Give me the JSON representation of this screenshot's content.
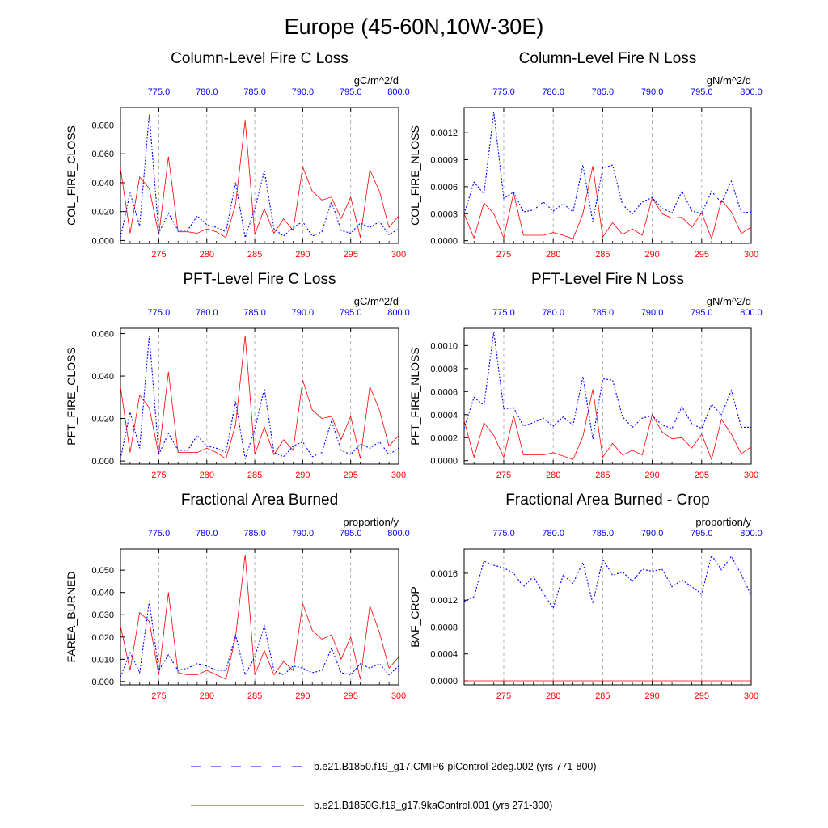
{
  "figure_title": "Europe (45-60N,10W-30E)",
  "legend": [
    {
      "label": "b.e21.B1850.f19_g17.CMIP6-piControl-2deg.002 (yrs 771-800)",
      "color": "#0000ff",
      "style": "dashed"
    },
    {
      "label": "b.e21.B1850G.f19_g17.9kaControl.001 (yrs 271-300)",
      "color": "#ff0000",
      "style": "solid"
    }
  ],
  "chart_data": [
    {
      "type": "line",
      "title": "Column-Level Fire C Loss",
      "units": "gC/m^2/d",
      "ylabel": "COL_FIRE_CLOSS",
      "xlim_bottom": [
        271,
        300
      ],
      "xticks_bottom": [
        275,
        280,
        285,
        290,
        295,
        300
      ],
      "xticks_top": [
        "775.0",
        "780.0",
        "785.0",
        "790.0",
        "795.0",
        "800.0"
      ],
      "ylim": [
        -0.002,
        0.092
      ],
      "yticks": [
        "0.000",
        "0.020",
        "0.040",
        "0.060",
        "0.080"
      ],
      "ytick_values": [
        0,
        0.02,
        0.04,
        0.06,
        0.08
      ],
      "x_bottom": [
        271,
        272,
        273,
        274,
        275,
        276,
        277,
        278,
        279,
        280,
        281,
        282,
        283,
        284,
        285,
        286,
        287,
        288,
        289,
        290,
        291,
        292,
        293,
        294,
        295,
        296,
        297,
        298,
        299,
        300
      ],
      "series": [
        {
          "name": "b.e21.B1850.f19_g17.CMIP6-piControl-2deg.002 (yrs 771-800)",
          "color": "#0000ff",
          "dash": true,
          "values": [
            0.002,
            0.033,
            0.01,
            0.087,
            0.005,
            0.019,
            0.007,
            0.007,
            0.017,
            0.011,
            0.009,
            0.006,
            0.04,
            0.002,
            0.022,
            0.048,
            0.008,
            0.003,
            0.009,
            0.013,
            0.003,
            0.006,
            0.027,
            0.007,
            0.005,
            0.012,
            0.009,
            0.013,
            0.004,
            0.008
          ]
        },
        {
          "name": "b.e21.B1850G.f19_g17.9kaControl.001 (yrs 271-300)",
          "color": "#ff0000",
          "dash": false,
          "values": [
            0.05,
            0.005,
            0.044,
            0.036,
            0.004,
            0.058,
            0.006,
            0.006,
            0.005,
            0.008,
            0.006,
            0.002,
            0.025,
            0.083,
            0.004,
            0.022,
            0.005,
            0.015,
            0.007,
            0.051,
            0.034,
            0.028,
            0.03,
            0.015,
            0.03,
            0.002,
            0.049,
            0.034,
            0.009,
            0.017
          ]
        }
      ]
    },
    {
      "type": "line",
      "title": "Column-Level Fire N Loss",
      "units": "gN/m^2/d",
      "ylabel": "COL_FIRE_NLOSS",
      "xlim_bottom": [
        271,
        300
      ],
      "xticks_bottom": [
        275,
        280,
        285,
        290,
        295,
        300
      ],
      "xticks_top": [
        "775.0",
        "780.0",
        "785.0",
        "790.0",
        "795.0",
        "800.0"
      ],
      "ylim": [
        -3e-05,
        0.00148
      ],
      "yticks": [
        "0.0000",
        "0.0003",
        "0.0006",
        "0.0009",
        "0.0012"
      ],
      "ytick_values": [
        0,
        0.0003,
        0.0006,
        0.0009,
        0.0012
      ],
      "x_bottom": [
        271,
        272,
        273,
        274,
        275,
        276,
        277,
        278,
        279,
        280,
        281,
        282,
        283,
        284,
        285,
        286,
        287,
        288,
        289,
        290,
        291,
        292,
        293,
        294,
        295,
        296,
        297,
        298,
        299,
        300
      ],
      "series": [
        {
          "name": "b.e21.B1850.f19_g17.CMIP6-piControl-2deg.002 (yrs 771-800)",
          "color": "#0000ff",
          "dash": true,
          "values": [
            0.0003,
            0.00065,
            0.00052,
            0.00143,
            0.00047,
            0.00054,
            0.00032,
            0.00034,
            0.00043,
            0.00033,
            0.00041,
            0.00032,
            0.00084,
            0.00021,
            0.00081,
            0.00084,
            0.0004,
            0.0003,
            0.00043,
            0.00048,
            0.00036,
            0.00031,
            0.00055,
            0.00033,
            0.0003,
            0.00055,
            0.00042,
            0.00066,
            0.00031,
            0.00032
          ]
        },
        {
          "name": "b.e21.B1850G.f19_g17.9kaControl.001 (yrs 271-300)",
          "color": "#ff0000",
          "dash": false,
          "values": [
            0.0003,
            3e-05,
            0.00042,
            0.0003,
            3e-05,
            0.00053,
            6e-05,
            6e-05,
            6e-05,
            9e-05,
            6e-05,
            2e-05,
            0.0003,
            0.00083,
            4e-05,
            0.0002,
            7e-05,
            0.00013,
            6e-05,
            0.00048,
            0.0003,
            0.00025,
            0.00026,
            0.00015,
            0.00031,
            2e-05,
            0.00045,
            0.00032,
            8e-05,
            0.00015
          ]
        }
      ]
    },
    {
      "type": "line",
      "title": "PFT-Level Fire C Loss",
      "units": "gC/m^2/d",
      "ylabel": "PFT_FIRE_CLOSS",
      "xlim_bottom": [
        271,
        300
      ],
      "xticks_bottom": [
        275,
        280,
        285,
        290,
        295,
        300
      ],
      "xticks_top": [
        "775.0",
        "780.0",
        "785.0",
        "790.0",
        "795.0",
        "800.0"
      ],
      "ylim": [
        -0.0015,
        0.0625
      ],
      "yticks": [
        "0.000",
        "0.020",
        "0.040",
        "0.060"
      ],
      "ytick_values": [
        0,
        0.02,
        0.04,
        0.06
      ],
      "x_bottom": [
        271,
        272,
        273,
        274,
        275,
        276,
        277,
        278,
        279,
        280,
        281,
        282,
        283,
        284,
        285,
        286,
        287,
        288,
        289,
        290,
        291,
        292,
        293,
        294,
        295,
        296,
        297,
        298,
        299,
        300
      ],
      "series": [
        {
          "name": "b.e21.B1850.f19_g17.CMIP6-piControl-2deg.002 (yrs 771-800)",
          "color": "#0000ff",
          "dash": true,
          "values": [
            0.001,
            0.023,
            0.006,
            0.059,
            0.003,
            0.013,
            0.005,
            0.005,
            0.012,
            0.007,
            0.006,
            0.004,
            0.028,
            0.001,
            0.015,
            0.034,
            0.004,
            0.002,
            0.007,
            0.009,
            0.002,
            0.004,
            0.019,
            0.005,
            0.003,
            0.008,
            0.006,
            0.009,
            0.003,
            0.006
          ]
        },
        {
          "name": "b.e21.B1850G.f19_g17.9kaControl.001 (yrs 271-300)",
          "color": "#ff0000",
          "dash": false,
          "values": [
            0.035,
            0.004,
            0.031,
            0.025,
            0.003,
            0.042,
            0.004,
            0.004,
            0.004,
            0.006,
            0.004,
            0.001,
            0.017,
            0.059,
            0.003,
            0.016,
            0.003,
            0.01,
            0.005,
            0.038,
            0.024,
            0.02,
            0.021,
            0.01,
            0.021,
            0.001,
            0.035,
            0.024,
            0.007,
            0.012
          ]
        }
      ]
    },
    {
      "type": "line",
      "title": "PFT-Level Fire N Loss",
      "units": "gN/m^2/d",
      "ylabel": "PFT_FIRE_NLOSS",
      "xlim_bottom": [
        271,
        300
      ],
      "xticks_bottom": [
        275,
        280,
        285,
        290,
        295,
        300
      ],
      "xticks_top": [
        "775.0",
        "780.0",
        "785.0",
        "790.0",
        "795.0",
        "800.0"
      ],
      "ylim": [
        -3e-05,
        0.00115
      ],
      "yticks": [
        "0.0000",
        "0.0002",
        "0.0004",
        "0.0006",
        "0.0008",
        "0.0010"
      ],
      "ytick_values": [
        0,
        0.0002,
        0.0004,
        0.0006,
        0.0008,
        0.001
      ],
      "x_bottom": [
        271,
        272,
        273,
        274,
        275,
        276,
        277,
        278,
        279,
        280,
        281,
        282,
        283,
        284,
        285,
        286,
        287,
        288,
        289,
        290,
        291,
        292,
        293,
        294,
        295,
        296,
        297,
        298,
        299,
        300
      ],
      "series": [
        {
          "name": "b.e21.B1850.f19_g17.CMIP6-piControl-2deg.002 (yrs 771-800)",
          "color": "#0000ff",
          "dash": true,
          "values": [
            0.00028,
            0.00055,
            0.00048,
            0.00112,
            0.00045,
            0.00046,
            0.0003,
            0.00033,
            0.00037,
            0.0003,
            0.00038,
            0.00031,
            0.00073,
            0.00019,
            0.00071,
            0.0007,
            0.00038,
            0.00029,
            0.00037,
            0.00039,
            0.00031,
            0.00028,
            0.00047,
            0.00032,
            0.00028,
            0.00049,
            0.0004,
            0.00061,
            0.00029,
            0.00029
          ]
        },
        {
          "name": "b.e21.B1850G.f19_g17.9kaControl.001 (yrs 271-300)",
          "color": "#ff0000",
          "dash": false,
          "values": [
            0.00035,
            3e-05,
            0.00033,
            0.00022,
            3e-05,
            0.00039,
            5e-05,
            5e-05,
            5e-05,
            7e-05,
            4e-05,
            1e-05,
            0.00021,
            0.00062,
            3e-05,
            0.00015,
            5e-05,
            9e-05,
            5e-05,
            0.0004,
            0.00025,
            0.00019,
            0.0002,
            0.00011,
            0.00023,
            1e-05,
            0.00036,
            0.00023,
            6e-05,
            0.00012
          ]
        }
      ]
    },
    {
      "type": "line",
      "title": "Fractional Area Burned",
      "units": "proportion/y",
      "ylabel": "FAREA_BURNED",
      "xlim_bottom": [
        271,
        300
      ],
      "xticks_bottom": [
        275,
        280,
        285,
        290,
        295,
        300
      ],
      "xticks_top": [
        "775.0",
        "780.0",
        "785.0",
        "790.0",
        "795.0",
        "800.0"
      ],
      "ylim": [
        -0.0015,
        0.0595
      ],
      "yticks": [
        "0.000",
        "0.010",
        "0.020",
        "0.030",
        "0.040",
        "0.050"
      ],
      "ytick_values": [
        0,
        0.01,
        0.02,
        0.03,
        0.04,
        0.05
      ],
      "x_bottom": [
        271,
        272,
        273,
        274,
        275,
        276,
        277,
        278,
        279,
        280,
        281,
        282,
        283,
        284,
        285,
        286,
        287,
        288,
        289,
        290,
        291,
        292,
        293,
        294,
        295,
        296,
        297,
        298,
        299,
        300
      ],
      "series": [
        {
          "name": "b.e21.B1850.f19_g17.CMIP6-piControl-2deg.002 (yrs 771-800)",
          "color": "#0000ff",
          "dash": true,
          "values": [
            0.002,
            0.013,
            0.004,
            0.036,
            0.005,
            0.012,
            0.005,
            0.006,
            0.008,
            0.007,
            0.005,
            0.005,
            0.021,
            0.003,
            0.011,
            0.025,
            0.005,
            0.003,
            0.007,
            0.006,
            0.004,
            0.005,
            0.015,
            0.004,
            0.003,
            0.008,
            0.006,
            0.008,
            0.003,
            0.007
          ]
        },
        {
          "name": "b.e21.B1850G.f19_g17.9kaControl.001 (yrs 271-300)",
          "color": "#ff0000",
          "dash": false,
          "values": [
            0.025,
            0.005,
            0.031,
            0.027,
            0.003,
            0.04,
            0.004,
            0.003,
            0.003,
            0.005,
            0.003,
            0.001,
            0.02,
            0.057,
            0.003,
            0.014,
            0.003,
            0.009,
            0.005,
            0.035,
            0.023,
            0.019,
            0.021,
            0.01,
            0.02,
            0.001,
            0.034,
            0.022,
            0.006,
            0.011
          ]
        }
      ]
    },
    {
      "type": "line",
      "title": "Fractional Area Burned - Crop",
      "units": "proportion/y",
      "ylabel": "BAF_CROP",
      "xlim_bottom": [
        271,
        300
      ],
      "xticks_bottom": [
        275,
        280,
        285,
        290,
        295,
        300
      ],
      "xticks_top": [
        "775.0",
        "780.0",
        "785.0",
        "790.0",
        "795.0",
        "800.0"
      ],
      "ylim": [
        -6e-05,
        0.00196
      ],
      "yticks": [
        "0.0000",
        "0.0004",
        "0.0008",
        "0.0012",
        "0.0016"
      ],
      "ytick_values": [
        0,
        0.0004,
        0.0008,
        0.0012,
        0.0016
      ],
      "x_bottom": [
        271,
        272,
        273,
        274,
        275,
        276,
        277,
        278,
        279,
        280,
        281,
        282,
        283,
        284,
        285,
        286,
        287,
        288,
        289,
        290,
        291,
        292,
        293,
        294,
        295,
        296,
        297,
        298,
        299,
        300
      ],
      "series": [
        {
          "name": "b.e21.B1850.f19_g17.CMIP6-piControl-2deg.002 (yrs 771-800)",
          "color": "#0000ff",
          "dash": true,
          "values": [
            0.00118,
            0.00125,
            0.00178,
            0.00172,
            0.00168,
            0.0016,
            0.0014,
            0.00155,
            0.0013,
            0.00108,
            0.00157,
            0.00145,
            0.00176,
            0.00115,
            0.00181,
            0.00157,
            0.00162,
            0.00148,
            0.00166,
            0.00163,
            0.00166,
            0.0014,
            0.0015,
            0.0014,
            0.00129,
            0.00187,
            0.00165,
            0.00185,
            0.00158,
            0.00127
          ]
        },
        {
          "name": "b.e21.B1850G.f19_g17.9kaControl.001 (yrs 271-300)",
          "color": "#ff0000",
          "dash": false,
          "values": [
            0,
            0,
            0,
            0,
            0,
            0,
            0,
            0,
            0,
            0,
            0,
            0,
            0,
            0,
            0,
            0,
            0,
            0,
            0,
            0,
            0,
            0,
            0,
            0,
            0,
            0,
            0,
            0,
            0,
            0
          ]
        }
      ]
    }
  ]
}
